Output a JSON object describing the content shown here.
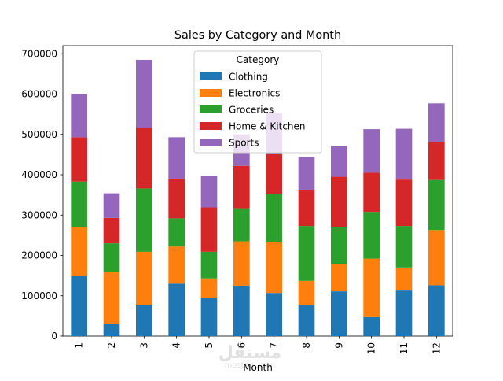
{
  "watermark": {
    "arabic": "مستقل",
    "latin": "mostaql.com"
  },
  "colors": {
    "Clothing": "#1f77b4",
    "Electronics": "#ff7f0e",
    "Groceries": "#2ca02c",
    "Home & Kitchen": "#d62728",
    "Sports": "#9467bd"
  },
  "chart_data": {
    "type": "bar",
    "stacked": true,
    "title": "Sales by Category and Month",
    "xlabel": "Month",
    "ylabel": "",
    "categories": [
      "1",
      "2",
      "3",
      "4",
      "5",
      "6",
      "7",
      "8",
      "9",
      "10",
      "11",
      "12"
    ],
    "ylim": [
      0,
      720000
    ],
    "yticks": [
      0,
      100000,
      200000,
      300000,
      400000,
      500000,
      600000,
      700000
    ],
    "ytick_labels": [
      "0",
      "100000",
      "200000",
      "300000",
      "400000",
      "500000",
      "600000",
      "700000"
    ],
    "grid": false,
    "legend": {
      "title": "Category",
      "position": "upper center"
    },
    "series": [
      {
        "name": "Clothing",
        "values": [
          150000,
          30000,
          78000,
          130000,
          95000,
          125000,
          107000,
          77000,
          111000,
          47000,
          113000,
          126000
        ]
      },
      {
        "name": "Electronics",
        "values": [
          120000,
          128000,
          131000,
          92000,
          48000,
          110000,
          126000,
          60000,
          67000,
          145000,
          57000,
          137000
        ]
      },
      {
        "name": "Groceries",
        "values": [
          113000,
          72000,
          157000,
          70000,
          66000,
          82000,
          119000,
          136000,
          92000,
          116000,
          103000,
          124000
        ]
      },
      {
        "name": "Home & Kitchen",
        "values": [
          110000,
          63000,
          151000,
          97000,
          110000,
          105000,
          100000,
          90000,
          125000,
          97000,
          115000,
          94000
        ]
      },
      {
        "name": "Sports",
        "values": [
          107000,
          61000,
          168000,
          104000,
          78000,
          78000,
          100000,
          81000,
          77000,
          108000,
          126000,
          96000
        ]
      }
    ]
  }
}
